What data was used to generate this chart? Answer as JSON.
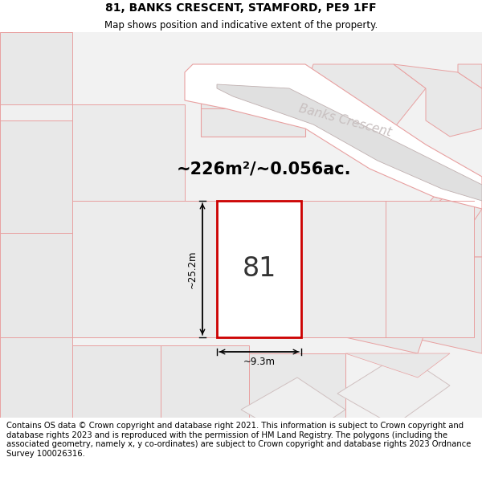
{
  "title": "81, BANKS CRESCENT, STAMFORD, PE9 1FF",
  "subtitle": "Map shows position and indicative extent of the property.",
  "area_text": "~226m²/~0.056ac.",
  "plot_number": "81",
  "dim_width": "~9.3m",
  "dim_height": "~25.2m",
  "footer": "Contains OS data © Crown copyright and database right 2021. This information is subject to Crown copyright and database rights 2023 and is reproduced with the permission of HM Land Registry. The polygons (including the associated geometry, namely x, y co-ordinates) are subject to Crown copyright and database rights 2023 Ordnance Survey 100026316.",
  "bg_color": "#f2f2f2",
  "map_bg": "#f2f2f2",
  "plot_fill": "#ffffff",
  "plot_edge": "#cc0000",
  "neighbor_fill": "#e8e8e8",
  "neighbor_fill2": "#efefef",
  "neighbor_edge": "#e8a0a0",
  "road_color": "#ffffff",
  "watermark_color": "#c8c0c0",
  "title_fontsize": 10,
  "subtitle_fontsize": 8.5,
  "footer_fontsize": 7.2,
  "area_fontsize": 15,
  "plot_num_fontsize": 24
}
